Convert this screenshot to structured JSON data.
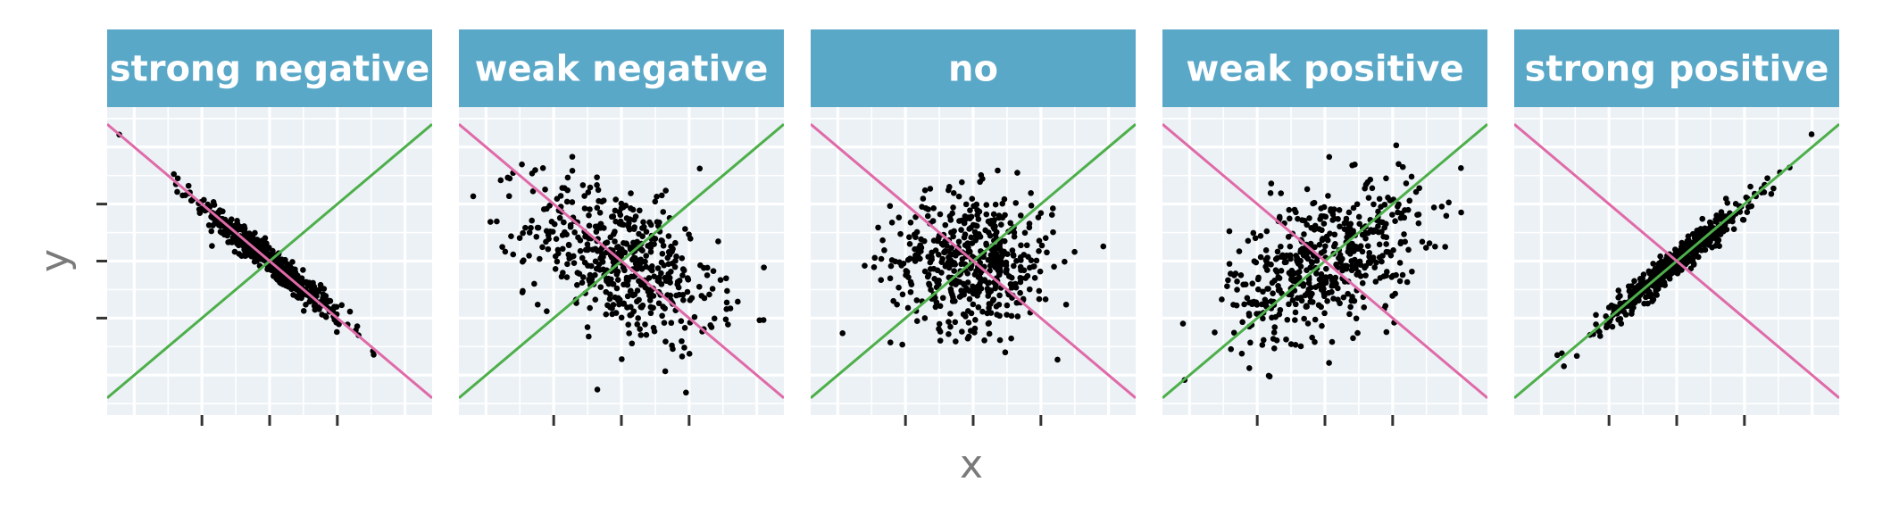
{
  "chart_data": {
    "type": "scatter",
    "xlabel": "x",
    "ylabel": "y",
    "xlim": [
      -2.4,
      2.4
    ],
    "ylim": [
      -2.7,
      2.7
    ],
    "xticks": [
      -1,
      0,
      1
    ],
    "yticks": [
      -1,
      0,
      1
    ],
    "tick_labels_shown": false,
    "grid": true,
    "facets": [
      {
        "label": "strong negative",
        "correlation": -0.97,
        "spread": 0.55
      },
      {
        "label": "weak negative",
        "correlation": -0.45,
        "spread": 0.7
      },
      {
        "label": "no",
        "correlation": 0.0,
        "spread": 0.6
      },
      {
        "label": "weak positive",
        "correlation": 0.45,
        "spread": 0.7
      },
      {
        "label": "strong positive",
        "correlation": 0.97,
        "spread": 0.55
      }
    ],
    "reference_lines": [
      {
        "slope": 1,
        "intercept": 0,
        "color": "#4daf4a"
      },
      {
        "slope": -1,
        "intercept": 0,
        "color": "#e06aa8"
      }
    ],
    "points_per_panel": 500,
    "colors": {
      "strip": "#5aa8c8",
      "panel": "#ebf1f5",
      "points": "#000000"
    }
  }
}
